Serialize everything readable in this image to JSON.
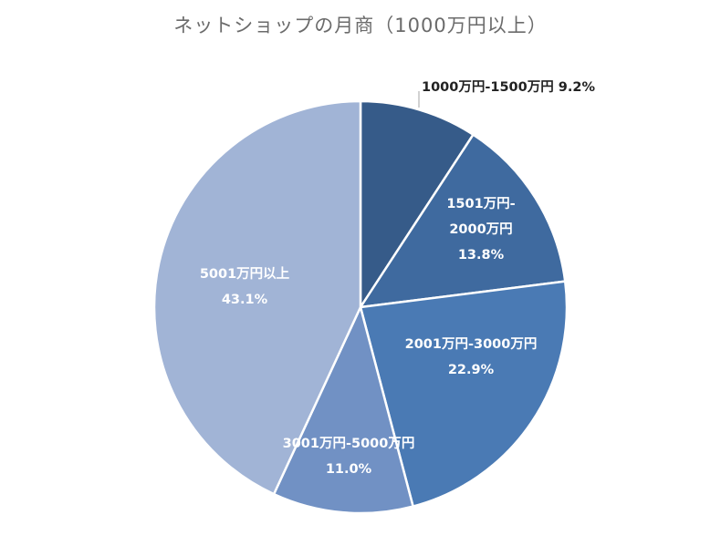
{
  "chart_data": {
    "type": "pie",
    "title": "ネットショップの月商（1000万円以上）",
    "start": "top",
    "direction": "clockwise",
    "slices": [
      {
        "label_lines": [
          "1000万円-1500万円 9.2%"
        ],
        "name": "1000万円-1500万円",
        "value": 9.2,
        "pct": "9.2%",
        "color": "#365b89"
      },
      {
        "label_lines": [
          "1501万円-",
          "2000万円",
          "13.8%"
        ],
        "name": "1501万円-2000万円",
        "value": 13.8,
        "pct": "13.8%",
        "color": "#3f6a9f"
      },
      {
        "label_lines": [
          "2001万円-3000万円",
          "22.9%"
        ],
        "name": "2001万円-3000万円",
        "value": 22.9,
        "pct": "22.9%",
        "color": "#4a7ab4"
      },
      {
        "label_lines": [
          "3001万円-5000万円",
          "11.0%"
        ],
        "name": "3001万円-5000万円",
        "value": 11.0,
        "pct": "11.0%",
        "color": "#7191c4"
      },
      {
        "label_lines": [
          "5001万円以上",
          "43.1%"
        ],
        "name": "5001万円以上",
        "value": 43.1,
        "pct": "43.1%",
        "color": "#a1b4d6"
      }
    ]
  }
}
